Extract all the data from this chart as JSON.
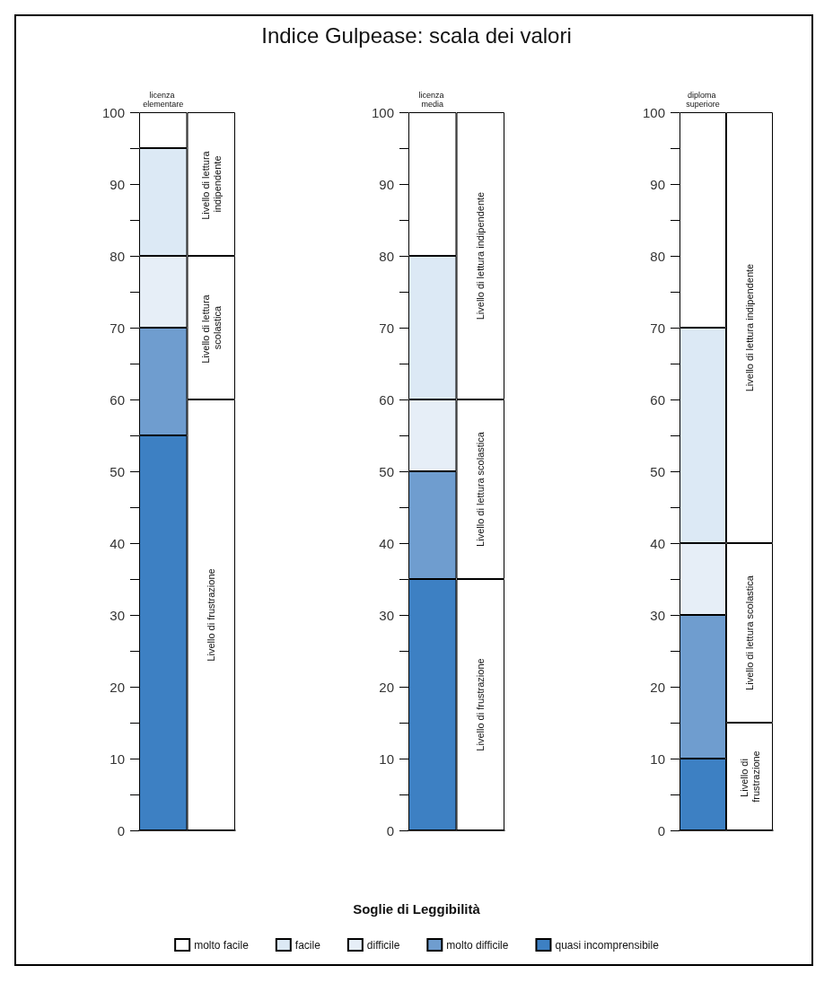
{
  "chart_data": [
    {
      "type": "bar",
      "stacked": true,
      "categories": [
        "licenza elementare",
        null
      ],
      "series": [
        {
          "color": "#3d80c3",
          "values": [
            55,
            null
          ]
        },
        {
          "color": "#6f9dcf",
          "values": [
            15,
            null
          ]
        },
        {
          "color": "#e6eef7",
          "values": [
            10,
            null
          ]
        },
        {
          "color": "#dce9f5",
          "values": [
            15,
            null
          ]
        },
        {
          "color": "#ffffff",
          "values": [
            5,
            null
          ]
        },
        {
          "name": "Livello di frustrazione",
          "color": "#ffffff",
          "values": [
            null,
            60
          ]
        },
        {
          "name": "Livello di lettura scolastica",
          "color": "#ffffff",
          "values": [
            null,
            20
          ]
        },
        {
          "name": "Livello di lettura indipendente",
          "color": "#ffffff",
          "values": [
            null,
            20
          ]
        }
      ],
      "ylim": [
        0,
        100
      ],
      "yticks": [
        0,
        {
          "value": 5,
          "label": null
        },
        10,
        {
          "value": 15,
          "label": null
        },
        20,
        {
          "value": 25,
          "label": null
        },
        30,
        {
          "value": 35,
          "label": null
        },
        40,
        {
          "value": 45,
          "label": null
        },
        50,
        {
          "value": 55,
          "label": null
        },
        60,
        {
          "value": 65,
          "label": null
        },
        70,
        {
          "value": 75,
          "label": null
        },
        80,
        {
          "value": 85,
          "label": null
        },
        90,
        {
          "value": 95,
          "label": null
        },
        100
      ],
      "grid": false
    },
    {
      "type": "bar",
      "title": "Indice Gulpease: scala dei valori",
      "stacked": true,
      "categories": [
        "licenza media",
        null
      ],
      "series": [
        {
          "name": "quasi incomprensibile",
          "color": "#3d80c3",
          "values": [
            35,
            null
          ]
        },
        {
          "name": "molto difficile",
          "color": "#6f9dcf",
          "values": [
            15,
            null
          ]
        },
        {
          "name": "difficile",
          "color": "#e6eef7",
          "values": [
            10,
            null
          ]
        },
        {
          "name": "facile",
          "color": "#dce9f5",
          "values": [
            20,
            null
          ]
        },
        {
          "name": "molto facile",
          "color": "#ffffff",
          "values": [
            20,
            null
          ]
        },
        {
          "name": "Livello di frustrazione",
          "color": "#ffffff",
          "values": [
            null,
            35
          ]
        },
        {
          "name": "Livello di lettura scolastica",
          "color": "#ffffff",
          "values": [
            null,
            25
          ]
        },
        {
          "name": "Livello di lettura indipendente",
          "color": "#ffffff",
          "values": [
            null,
            40
          ]
        }
      ],
      "ylim": [
        0,
        100
      ],
      "yticks": [
        0,
        {
          "value": 5,
          "label": null
        },
        10,
        {
          "value": 15,
          "label": null
        },
        20,
        {
          "value": 25,
          "label": null
        },
        30,
        {
          "value": 35,
          "label": null
        },
        40,
        {
          "value": 45,
          "label": null
        },
        50,
        {
          "value": 55,
          "label": null
        },
        60,
        {
          "value": 65,
          "label": null
        },
        70,
        {
          "value": 75,
          "label": null
        },
        80,
        {
          "value": 85,
          "label": null
        },
        90,
        {
          "value": 95,
          "label": null
        },
        100
      ],
      "grid": false,
      "legend": "bottom",
      "legend_title": "Soglie di Leggibilità"
    },
    {
      "type": "bar",
      "stacked": true,
      "categories": [
        "diploma superiore",
        null
      ],
      "series": [
        {
          "color": "#3d80c3",
          "values": [
            10,
            null
          ]
        },
        {
          "color": "#6f9dcf",
          "values": [
            20,
            null
          ]
        },
        {
          "color": "#e6eef7",
          "values": [
            10,
            null
          ]
        },
        {
          "color": "#dce9f5",
          "values": [
            30,
            null
          ]
        },
        {
          "color": "#ffffff",
          "values": [
            30,
            null
          ]
        },
        {
          "name": "Livello di frustrazione",
          "color": "#ffffff",
          "values": [
            null,
            15
          ]
        },
        {
          "name": "Livello di lettura scolastica",
          "color": "#ffffff",
          "values": [
            null,
            25
          ]
        },
        {
          "name": "Livello di lettura indipendente",
          "color": "#ffffff",
          "values": [
            null,
            60
          ]
        }
      ],
      "ylim": [
        0,
        100
      ],
      "yticks": [
        0,
        {
          "value": 5,
          "label": null
        },
        10,
        {
          "value": 15,
          "label": null
        },
        20,
        {
          "value": 25,
          "label": null
        },
        30,
        {
          "value": 35,
          "label": null
        },
        40,
        {
          "value": 45,
          "label": null
        },
        50,
        {
          "value": 55,
          "label": null
        },
        60,
        {
          "value": 65,
          "label": null
        },
        70,
        {
          "value": 75,
          "label": null
        },
        80,
        {
          "value": 85,
          "label": null
        },
        90,
        {
          "value": 95,
          "label": null
        },
        100
      ],
      "grid": false
    }
  ]
}
